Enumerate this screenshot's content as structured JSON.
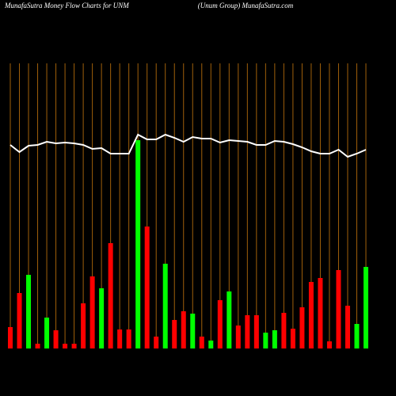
{
  "chart_data": {
    "type": "bar",
    "title": "MunafaSutra  Money Flow  Charts for UNM",
    "subtitle": "(Unum Group) MunafaSutra.com",
    "categories": [
      null,
      null,
      null,
      null,
      null,
      null,
      null,
      null,
      null,
      null,
      null,
      null,
      null,
      null,
      null,
      null,
      null,
      null,
      null,
      null,
      null,
      null,
      null,
      null,
      null,
      null,
      null,
      null,
      null,
      null,
      null,
      null,
      null,
      null,
      null,
      null,
      null,
      null,
      null,
      null
    ],
    "values": [
      27,
      70,
      93,
      6,
      39,
      23,
      6,
      6,
      57,
      91,
      76,
      133,
      24,
      24,
      263,
      154,
      15,
      107,
      36,
      47,
      44,
      15,
      10,
      61,
      72,
      29,
      42,
      42,
      20,
      23,
      45,
      25,
      52,
      84,
      89,
      9,
      99,
      54,
      31,
      103
    ],
    "colors": [
      "#ff0000",
      "#ff0000",
      "#00ff00",
      "#ff0000",
      "#00ff00",
      "#ff0000",
      "#ff0000",
      "#ff0000",
      "#ff0000",
      "#ff0000",
      "#00ff00",
      "#ff0000",
      "#ff0000",
      "#ff0000",
      "#00ff00",
      "#ff0000",
      "#ff0000",
      "#00ff00",
      "#ff0000",
      "#ff0000",
      "#00ff00",
      "#ff0000",
      "#00ff00",
      "#ff0000",
      "#00ff00",
      "#ff0000",
      "#ff0000",
      "#ff0000",
      "#00ff00",
      "#00ff00",
      "#ff0000",
      "#ff0000",
      "#ff0000",
      "#ff0000",
      "#ff0000",
      "#ff0000",
      "#ff0000",
      "#ff0000",
      "#00ff00",
      "#00ff00"
    ],
    "line": {
      "color": "#ffffff",
      "values": [
        257,
        248,
        256,
        257,
        261,
        259,
        260,
        259,
        257,
        252,
        253,
        246,
        246,
        246,
        270,
        264,
        264,
        270,
        266,
        261,
        267,
        265,
        265,
        260,
        263,
        262,
        261,
        257,
        257,
        262,
        261,
        258,
        254,
        249,
        246,
        246,
        251,
        242,
        246,
        251
      ]
    },
    "ylim": [
      0,
      360
    ],
    "grid_color": "#a0600a",
    "background": "#000000"
  }
}
